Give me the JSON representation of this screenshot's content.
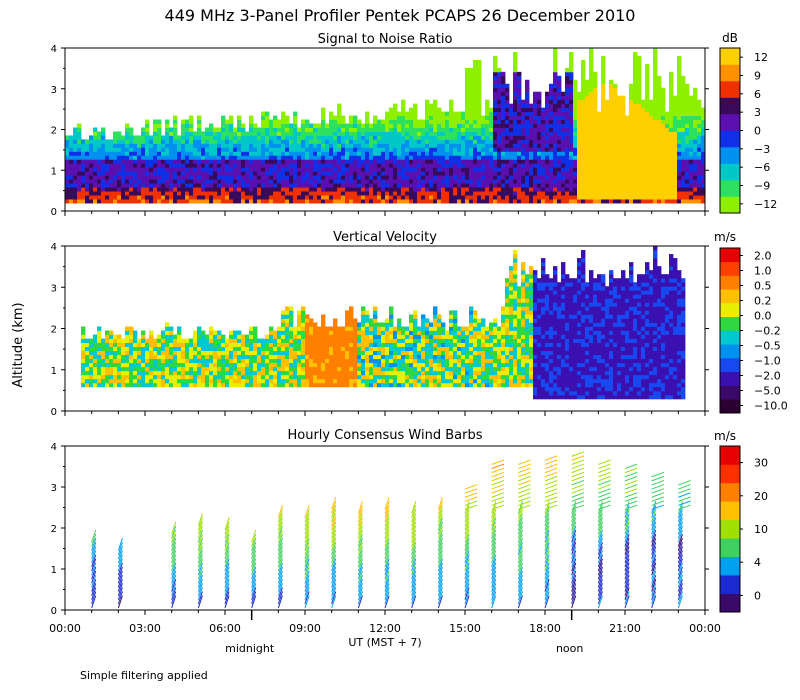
{
  "title": "449 MHz 3-Panel Profiler Pentek PCAPS 26 December 2010",
  "ylabel": "Altitude (km)",
  "footnote": "Simple filtering applied",
  "time_axis": {
    "ticks": [
      "00:00",
      "03:00",
      "06:00",
      "09:00",
      "12:00",
      "15:00",
      "18:00",
      "21:00",
      "00:00"
    ],
    "xlabel": "UT  (MST + 7)",
    "markers": [
      {
        "label": "midnight",
        "hour": 7
      },
      {
        "label": "noon",
        "hour": 19
      }
    ]
  },
  "colors": {
    "snr": [
      "#8ef000",
      "#2ee060",
      "#00c8c8",
      "#0090f0",
      "#1030e8",
      "#5a10b0",
      "#3a0a5a",
      "#f03000",
      "#ff9000",
      "#ffd000"
    ],
    "vv": [
      "#2a0030",
      "#3a0a6a",
      "#3a10b0",
      "#1848f0",
      "#0090f0",
      "#00c8d0",
      "#30d840",
      "#e8f000",
      "#ffc000",
      "#ff8000",
      "#ff4000",
      "#e80000"
    ],
    "wind": [
      "#3a0a6a",
      "#1a2ad0",
      "#00a0f0",
      "#40d060",
      "#a0e000",
      "#ffc000",
      "#ff8000",
      "#ff3000",
      "#e80000"
    ]
  },
  "chart_data": [
    {
      "type": "heatmap",
      "title": "Signal to Noise Ratio",
      "colorbar_unit": "dB",
      "colorbar_ticks": [
        "12",
        "9",
        "6",
        "3",
        "0",
        "−3",
        "−6",
        "−9",
        "−12"
      ],
      "colorbar_range": [
        -12,
        14
      ],
      "xlim": [
        0,
        24
      ],
      "ylim": [
        0,
        4
      ],
      "yticks": [
        "0",
        "1",
        "2",
        "3",
        "4"
      ],
      "xlabel": "UT (MST + 7)",
      "ylabel": "Altitude (km)",
      "grid": false,
      "features": [
        {
          "desc": "high SNR blob",
          "hours": [
            19,
            23
          ],
          "alt": [
            0.2,
            3.3
          ],
          "db": 13
        },
        {
          "desc": "low-level layer",
          "hours": [
            0,
            24
          ],
          "alt": [
            0.6,
            1.3
          ],
          "db": 3
        }
      ]
    },
    {
      "type": "heatmap",
      "title": "Vertical Velocity",
      "colorbar_unit": "m/s",
      "colorbar_ticks": [
        "2.0",
        "1.0",
        "0.5",
        "0.2",
        "0.0",
        "−0.2",
        "−0.5",
        "−1.0",
        "−2.0",
        "−5.0",
        "−10.0"
      ],
      "xlim": [
        0,
        24
      ],
      "ylim": [
        0,
        4
      ],
      "yticks": [
        "0",
        "1",
        "2",
        "3",
        "4"
      ],
      "xlabel": "UT (MST + 7)",
      "ylabel": "Altitude (km)",
      "grid": false,
      "features": [
        {
          "desc": "strong downward motion",
          "hours": [
            17.5,
            23
          ],
          "alt": [
            0.3,
            4
          ],
          "ms": -2.5
        },
        {
          "desc": "upward motion",
          "hours": [
            9,
            11
          ],
          "alt": [
            0.6,
            2.3
          ],
          "ms": 0.6
        }
      ]
    },
    {
      "type": "barbs",
      "title": "Hourly Consensus Wind Barbs",
      "colorbar_unit": "m/s",
      "colorbar_ticks": [
        "30",
        "20",
        "10",
        "4",
        "0"
      ],
      "colorbar_range": [
        0,
        35
      ],
      "xlim": [
        0,
        24
      ],
      "ylim": [
        0,
        4
      ],
      "yticks": [
        "0",
        "1",
        "2",
        "3",
        "4"
      ],
      "xlabel": "UT (MST + 7)",
      "ylabel": "Altitude (km)",
      "grid": false,
      "series": [
        {
          "hour": 1,
          "top": 1.7,
          "speed": 10
        },
        {
          "hour": 2,
          "top": 1.5,
          "speed": 8
        },
        {
          "hour": 4,
          "top": 1.9,
          "speed": 14
        },
        {
          "hour": 5,
          "top": 2.1,
          "speed": 16
        },
        {
          "hour": 6,
          "top": 2.0,
          "speed": 15
        },
        {
          "hour": 7,
          "top": 1.7,
          "speed": 14
        },
        {
          "hour": 8,
          "top": 2.3,
          "speed": 16
        },
        {
          "hour": 9,
          "top": 2.3,
          "speed": 17
        },
        {
          "hour": 10,
          "top": 2.5,
          "speed": 18
        },
        {
          "hour": 11,
          "top": 2.4,
          "speed": 18
        },
        {
          "hour": 12,
          "top": 2.5,
          "speed": 18
        },
        {
          "hour": 13,
          "top": 2.4,
          "speed": 17
        },
        {
          "hour": 14,
          "top": 2.5,
          "speed": 16
        },
        {
          "hour": 15,
          "top": 3.0,
          "speed": 18
        },
        {
          "hour": 16,
          "top": 3.6,
          "speed": 19
        },
        {
          "hour": 17,
          "top": 3.6,
          "speed": 18
        },
        {
          "hour": 18,
          "top": 3.7,
          "speed": 17
        },
        {
          "hour": 19,
          "top": 3.8,
          "speed": 16
        },
        {
          "hour": 20,
          "top": 3.6,
          "speed": 15
        },
        {
          "hour": 21,
          "top": 3.5,
          "speed": 14
        },
        {
          "hour": 22,
          "top": 3.3,
          "speed": 12
        },
        {
          "hour": 23,
          "top": 3.1,
          "speed": 11
        }
      ]
    }
  ]
}
